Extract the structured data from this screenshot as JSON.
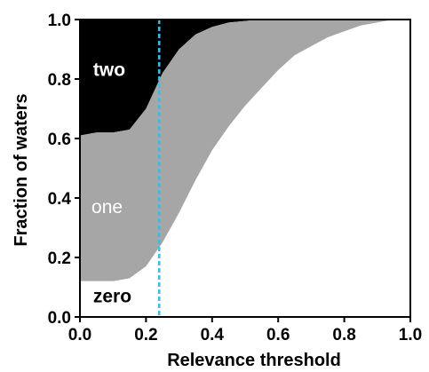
{
  "chart_data": {
    "type": "area",
    "xlabel": "Relevance threshold",
    "ylabel": "Fraction of waters",
    "xlim": [
      0.0,
      1.0
    ],
    "ylim": [
      0.0,
      1.0
    ],
    "xticks": [
      "0.0",
      "0.2",
      "0.4",
      "0.6",
      "0.8",
      "1.0"
    ],
    "yticks": [
      "0.0",
      "0.2",
      "0.4",
      "0.6",
      "0.8",
      "1.0"
    ],
    "x": [
      0.0,
      0.05,
      0.1,
      0.15,
      0.2,
      0.25,
      0.3,
      0.35,
      0.4,
      0.45,
      0.5,
      0.55,
      0.6,
      0.65,
      0.7,
      0.75,
      0.8,
      0.85,
      0.9,
      0.95,
      1.0
    ],
    "boundaries": [
      {
        "name": "zero",
        "upper": [
          0.12,
          0.12,
          0.12,
          0.13,
          0.17,
          0.25,
          0.35,
          0.46,
          0.56,
          0.64,
          0.71,
          0.77,
          0.83,
          0.88,
          0.91,
          0.94,
          0.96,
          0.98,
          0.99,
          1.0,
          1.0
        ]
      },
      {
        "name": "one",
        "upper": [
          0.61,
          0.62,
          0.62,
          0.63,
          0.7,
          0.82,
          0.9,
          0.95,
          0.975,
          0.99,
          0.995,
          1.0,
          1.0,
          1.0,
          1.0,
          1.0,
          1.0,
          1.0,
          1.0,
          1.0,
          1.0
        ]
      },
      {
        "name": "two",
        "upper": [
          1.0,
          1.0,
          1.0,
          1.0,
          1.0,
          1.0,
          1.0,
          1.0,
          1.0,
          1.0,
          1.0,
          1.0,
          1.0,
          1.0,
          1.0,
          1.0,
          1.0,
          1.0,
          1.0,
          1.0,
          1.0
        ]
      }
    ],
    "region_labels": {
      "zero": "zero",
      "one": "one",
      "two": "two"
    },
    "threshold_line": {
      "x": 0.24,
      "color": "#29c4e6",
      "style": "dashed"
    },
    "colors": {
      "zero": "#ffffff",
      "one": "#a6a6a6",
      "two": "#000000"
    },
    "grid": false,
    "legend": "none"
  }
}
